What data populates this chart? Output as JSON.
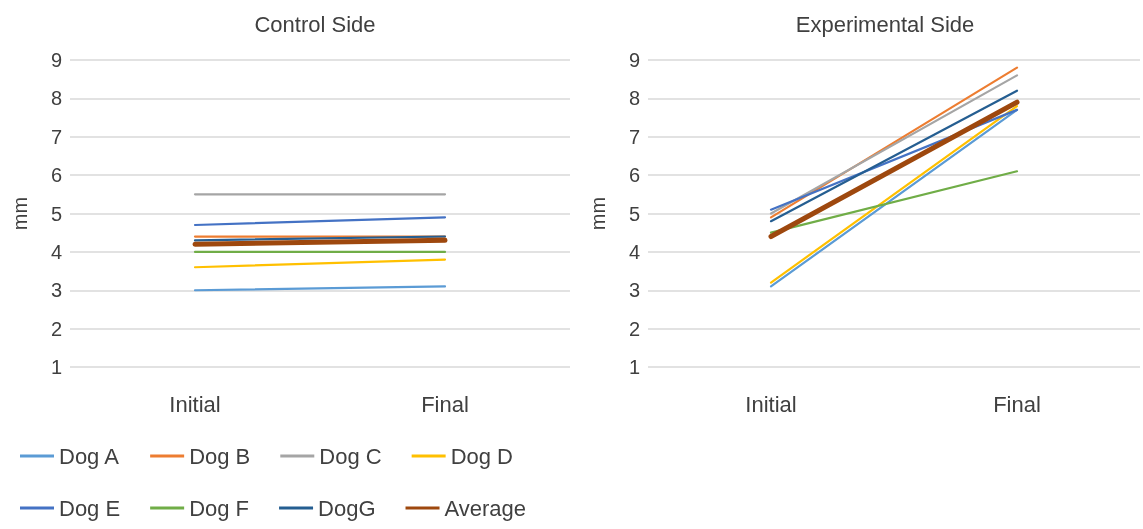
{
  "chart_data": [
    {
      "type": "line",
      "title": "Control Side",
      "ylabel": "mm",
      "categories": [
        "Initial",
        "Final"
      ],
      "ylim": [
        1,
        9
      ],
      "yticks": [
        1,
        2,
        3,
        4,
        5,
        6,
        7,
        8,
        9
      ],
      "grid": "y",
      "legend": "bottom",
      "marker": "none",
      "line_style": "solid",
      "series": [
        {
          "name": "Dog A",
          "color": "#5b9bd5",
          "values": [
            3.0,
            3.1
          ]
        },
        {
          "name": "Dog B",
          "color": "#ed7d31",
          "values": [
            4.4,
            4.4
          ]
        },
        {
          "name": "Dog C",
          "color": "#a5a5a5",
          "values": [
            5.5,
            5.5
          ]
        },
        {
          "name": "Dog D",
          "color": "#ffc000",
          "values": [
            3.6,
            3.8
          ]
        },
        {
          "name": "Dog E",
          "color": "#4472c4",
          "values": [
            4.7,
            4.9
          ]
        },
        {
          "name": "Dog F",
          "color": "#70ad47",
          "values": [
            4.0,
            4.0
          ]
        },
        {
          "name": "DogG",
          "color": "#255e91",
          "values": [
            4.3,
            4.4
          ]
        },
        {
          "name": "Average",
          "color": "#9e480e",
          "values": [
            4.2,
            4.3
          ]
        }
      ]
    },
    {
      "type": "line",
      "title": "Experimental Side",
      "ylabel": "mm",
      "categories": [
        "Initial",
        "Final"
      ],
      "ylim": [
        1,
        9
      ],
      "yticks": [
        1,
        2,
        3,
        4,
        5,
        6,
        7,
        8,
        9
      ],
      "grid": "y",
      "legend": false,
      "marker": "none",
      "line_style": "solid",
      "series": [
        {
          "color": "#5b9bd5",
          "values": [
            3.1,
            7.7
          ]
        },
        {
          "color": "#ed7d31",
          "values": [
            4.9,
            8.8
          ]
        },
        {
          "color": "#a5a5a5",
          "values": [
            5.0,
            8.6
          ]
        },
        {
          "color": "#ffc000",
          "values": [
            3.2,
            7.8
          ]
        },
        {
          "color": "#4472c4",
          "values": [
            5.1,
            7.7
          ]
        },
        {
          "color": "#70ad47",
          "values": [
            4.5,
            6.1
          ]
        },
        {
          "color": "#255e91",
          "values": [
            4.8,
            8.2
          ]
        },
        {
          "color": "#9e480e",
          "values": [
            4.4,
            7.9
          ]
        }
      ]
    }
  ]
}
